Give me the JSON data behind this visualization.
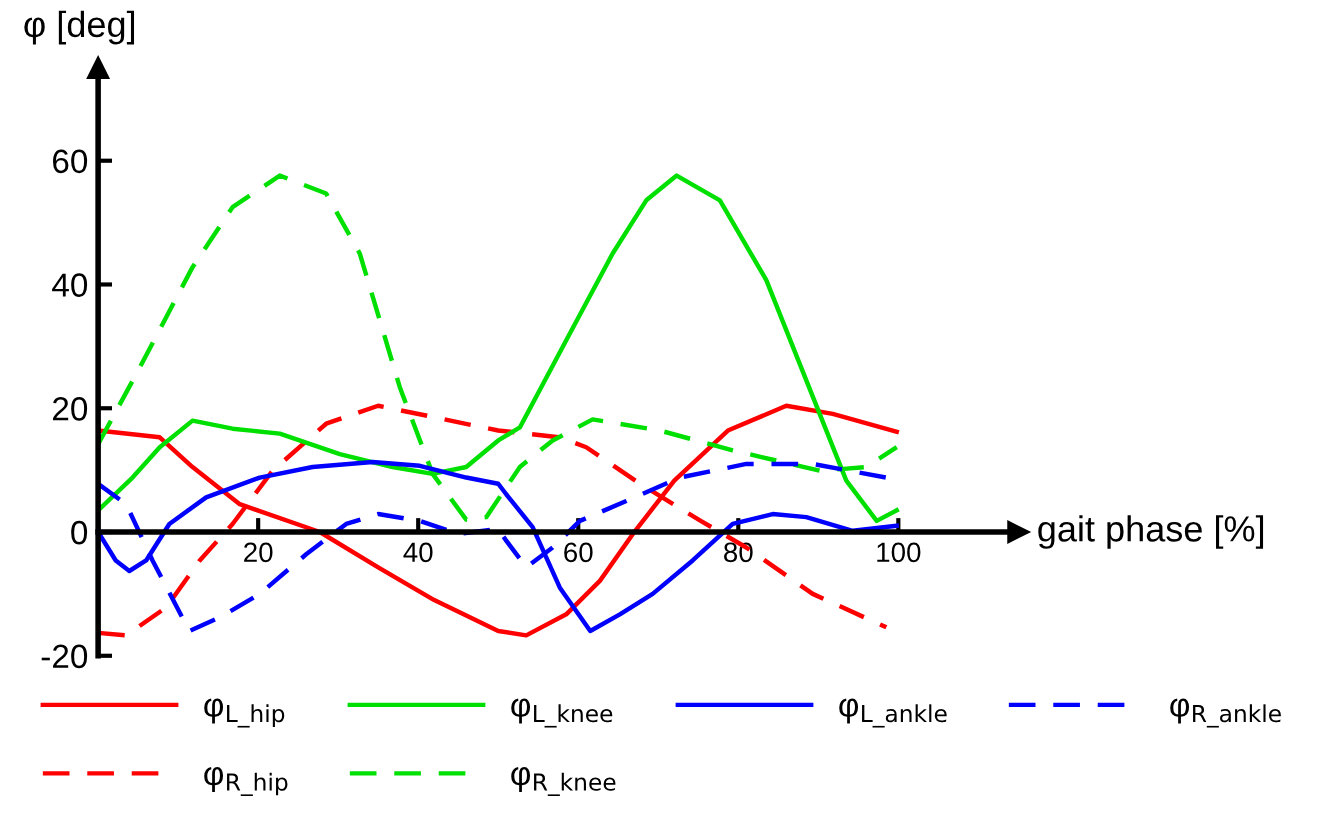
{
  "chart_data": {
    "type": "line",
    "ylabel": "φ [deg]",
    "xlabel": "gait phase [%]",
    "xlim": [
      0,
      115
    ],
    "ylim": [
      -20,
      75
    ],
    "xticks": [
      20,
      40,
      60,
      80,
      100
    ],
    "yticks": [
      -20,
      0,
      20,
      40,
      60
    ],
    "grid": false,
    "legend": "bottom",
    "marker": "none",
    "series": [
      {
        "name": "φ$_{L_hip}$",
        "color": "#ff0000",
        "line_style": "solid",
        "x": [
          0,
          7.7,
          11.8,
          17.7,
          27.7,
          35,
          42,
          50,
          53.5,
          58.5,
          62.7,
          67,
          72,
          78.7,
          86,
          91.8,
          99.8
        ],
        "values": [
          16.4,
          15.3,
          10.5,
          4.5,
          0,
          -5.7,
          -11,
          -16,
          -16.7,
          -13.3,
          -7.9,
          0,
          8.3,
          16.4,
          20.4,
          19.1,
          16.2
        ]
      },
      {
        "name": "φ$_{R_hip}$",
        "color": "#ff0000",
        "line_style": "dashed",
        "x": [
          0,
          3.5,
          8.5,
          12.7,
          16.8,
          21.8,
          28.5,
          35,
          41.8,
          50,
          57.7,
          61,
          67.7,
          75.3,
          81,
          89.3,
          98.5
        ],
        "values": [
          -16.3,
          -16.7,
          -12.2,
          -4.6,
          1.3,
          9.9,
          17.5,
          20.4,
          18.6,
          16.4,
          15.3,
          13.7,
          7.8,
          1.8,
          -2.5,
          -10,
          -15.4
        ]
      },
      {
        "name": "φ$_{L_knee}$",
        "color": "#00e000",
        "line_style": "solid",
        "x": [
          0,
          4.3,
          7.7,
          11.8,
          16.8,
          22.7,
          30.2,
          36.8,
          41.8,
          46,
          50,
          52.7,
          58.5,
          64.3,
          68.5,
          72.3,
          77.7,
          83.5,
          88.5,
          93.5,
          97.3,
          99.8
        ],
        "values": [
          3.5,
          8.8,
          13.7,
          18,
          16.7,
          15.9,
          12.6,
          10.5,
          9.4,
          10.5,
          14.8,
          16.9,
          31,
          45,
          53.6,
          57.6,
          53.6,
          40.7,
          24.5,
          8.3,
          1.8,
          3.5
        ]
      },
      {
        "name": "φ$_{R_knee}$",
        "color": "#00e000",
        "line_style": "dashed",
        "x": [
          0,
          4.8,
          11.8,
          16.8,
          22.7,
          28.5,
          32.7,
          37.7,
          41.8,
          46,
          48.5,
          52.7,
          56.8,
          61.8,
          70.2,
          79.3,
          90.2,
          96,
          99.8
        ],
        "values": [
          14.2,
          25.6,
          42.8,
          52.5,
          57.6,
          54.7,
          45,
          23.4,
          9.4,
          2,
          2.4,
          10.5,
          14.8,
          18.2,
          16.4,
          13.2,
          9.9,
          10.5,
          13.7
        ]
      },
      {
        "name": "φ$_{L_ankle}$",
        "color": "#0000ff",
        "line_style": "solid",
        "x": [
          0,
          2.2,
          3.9,
          6,
          8.9,
          13.5,
          20.2,
          26.8,
          34.3,
          40.2,
          46,
          50,
          51,
          54.3,
          57.7,
          61.5,
          65.2,
          69.3,
          74.3,
          79.3,
          84.3,
          88.5,
          94.3,
          99.8
        ],
        "values": [
          0,
          -4.6,
          -6.3,
          -4.6,
          1.3,
          5.6,
          8.8,
          10.5,
          11.3,
          10.7,
          8.8,
          7.8,
          6.1,
          0.8,
          -9,
          -16,
          -13.3,
          -10,
          -4.6,
          1.3,
          2.9,
          2.4,
          0.2,
          1
        ]
      },
      {
        "name": "φ$_{R_ankle}$",
        "color": "#0000ff",
        "line_style": "dashed",
        "x": [
          0,
          3.5,
          6.8,
          11.4,
          15.2,
          20.2,
          26,
          31,
          35,
          40.2,
          45,
          50,
          51,
          53.5,
          56.8,
          60.2,
          66,
          72.7,
          81,
          89.3,
          98.5
        ],
        "values": [
          7.8,
          4.5,
          -4.6,
          -16,
          -13.8,
          -10,
          -3.6,
          1.3,
          2.9,
          1.8,
          -0.3,
          0.5,
          -1.4,
          -5.7,
          -2.5,
          1.8,
          5,
          8.8,
          11,
          11,
          8.8
        ]
      }
    ]
  }
}
